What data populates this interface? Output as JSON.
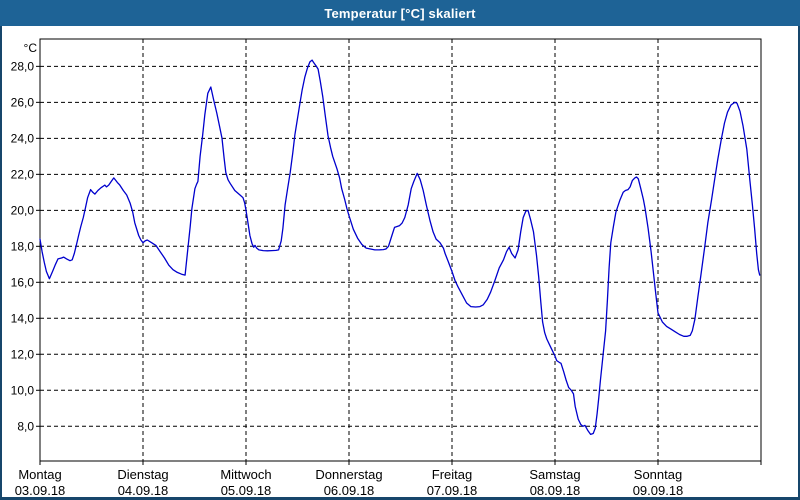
{
  "window": {
    "title": "Temperatur [°C] skaliert"
  },
  "colors": {
    "titlebar_bg": "#1e6396",
    "window_border": "#17466b",
    "line_color": "#0000cd",
    "grid_color": "#000000",
    "text_color": "#000000",
    "plot_bg": "#ffffff"
  },
  "chart_data": {
    "type": "line",
    "title": "Temperatur [°C] skaliert",
    "ylabel": "°C",
    "unit_label": "°C",
    "grid": "dashed",
    "legend": "none",
    "ylim": [
      6.07,
      29.52
    ],
    "xlim_hours": [
      0,
      168
    ],
    "y_ticks": [
      {
        "value": 28,
        "label": "28,0"
      },
      {
        "value": 26,
        "label": "26,0"
      },
      {
        "value": 24,
        "label": "24,0"
      },
      {
        "value": 22,
        "label": "22,0"
      },
      {
        "value": 20,
        "label": "20,0"
      },
      {
        "value": 18,
        "label": "18,0"
      },
      {
        "value": 16,
        "label": "16,0"
      },
      {
        "value": 14,
        "label": "14,0"
      },
      {
        "value": 12,
        "label": "12,0"
      },
      {
        "value": 10,
        "label": "10,0"
      },
      {
        "value": 8,
        "label": "8,0"
      }
    ],
    "x_days": [
      {
        "name": "Montag",
        "date": "03.09.18"
      },
      {
        "name": "Dienstag",
        "date": "04.09.18"
      },
      {
        "name": "Mittwoch",
        "date": "05.09.18"
      },
      {
        "name": "Donnerstag",
        "date": "06.09.18"
      },
      {
        "name": "Freitag",
        "date": "07.09.18"
      },
      {
        "name": "Samstag",
        "date": "08.09.18"
      },
      {
        "name": "Sonntag",
        "date": "09.09.18"
      }
    ],
    "series": [
      {
        "name": "Temperatur",
        "color": "#0000cd",
        "points": [
          [
            0,
            18.4
          ],
          [
            0.5,
            17.7
          ],
          [
            1,
            17.1
          ],
          [
            1.5,
            16.6
          ],
          [
            2.2,
            16.2
          ],
          [
            3,
            16.65
          ],
          [
            3.6,
            17.0
          ],
          [
            4.2,
            17.3
          ],
          [
            5,
            17.35
          ],
          [
            5.5,
            17.4
          ],
          [
            6.2,
            17.3
          ],
          [
            7,
            17.2
          ],
          [
            7.5,
            17.25
          ],
          [
            8,
            17.6
          ],
          [
            8.5,
            18.1
          ],
          [
            9,
            18.6
          ],
          [
            9.5,
            19.1
          ],
          [
            10.1,
            19.6
          ],
          [
            10.6,
            20.15
          ],
          [
            11.1,
            20.7
          ],
          [
            11.8,
            21.15
          ],
          [
            12.3,
            21.0
          ],
          [
            12.8,
            20.9
          ],
          [
            13.5,
            21.1
          ],
          [
            14.2,
            21.25
          ],
          [
            15.1,
            21.4
          ],
          [
            15.5,
            21.3
          ],
          [
            16,
            21.4
          ],
          [
            16.6,
            21.6
          ],
          [
            17.2,
            21.8
          ],
          [
            18,
            21.55
          ],
          [
            18.6,
            21.4
          ],
          [
            19.4,
            21.1
          ],
          [
            20.2,
            20.85
          ],
          [
            21,
            20.4
          ],
          [
            21.6,
            19.9
          ],
          [
            22.1,
            19.3
          ],
          [
            23,
            18.6
          ],
          [
            23.5,
            18.35
          ],
          [
            24,
            18.2
          ],
          [
            24.5,
            18.3
          ],
          [
            25,
            18.35
          ],
          [
            26,
            18.2
          ],
          [
            27,
            18.05
          ],
          [
            28,
            17.7
          ],
          [
            29,
            17.35
          ],
          [
            30,
            16.95
          ],
          [
            31,
            16.7
          ],
          [
            32,
            16.55
          ],
          [
            33,
            16.45
          ],
          [
            33.8,
            16.4
          ],
          [
            34.5,
            18.0
          ],
          [
            35,
            19.1
          ],
          [
            35.4,
            20.1
          ],
          [
            36.1,
            21.2
          ],
          [
            36.5,
            21.45
          ],
          [
            36.8,
            21.6
          ],
          [
            37.3,
            23.0
          ],
          [
            37.9,
            24.2
          ],
          [
            38.4,
            25.3
          ],
          [
            39.1,
            26.5
          ],
          [
            39.8,
            26.85
          ],
          [
            40.5,
            26.1
          ],
          [
            41.2,
            25.4
          ],
          [
            41.9,
            24.6
          ],
          [
            42.4,
            24.0
          ],
          [
            42.9,
            22.9
          ],
          [
            43.3,
            22.1
          ],
          [
            43.8,
            21.7
          ],
          [
            44.3,
            21.5
          ],
          [
            45.4,
            21.1
          ],
          [
            46.6,
            20.85
          ],
          [
            47.3,
            20.7
          ],
          [
            47.7,
            20.4
          ],
          [
            48,
            20.0
          ],
          [
            48.4,
            19.4
          ],
          [
            48.9,
            18.6
          ],
          [
            49.4,
            18.15
          ],
          [
            49.8,
            17.95
          ],
          [
            50.1,
            18.05
          ],
          [
            50.5,
            17.9
          ],
          [
            51,
            17.8
          ],
          [
            52,
            17.76
          ],
          [
            53,
            17.75
          ],
          [
            54,
            17.76
          ],
          [
            55,
            17.77
          ],
          [
            55.6,
            17.8
          ],
          [
            56.2,
            18.3
          ],
          [
            56.6,
            19.0
          ],
          [
            57.1,
            20.3
          ],
          [
            57.7,
            21.2
          ],
          [
            58.3,
            22.1
          ],
          [
            58.9,
            23.2
          ],
          [
            59.4,
            24.2
          ],
          [
            60,
            25.1
          ],
          [
            60.6,
            26.0
          ],
          [
            61.1,
            26.7
          ],
          [
            61.7,
            27.4
          ],
          [
            62.3,
            27.9
          ],
          [
            62.9,
            28.25
          ],
          [
            63.4,
            28.35
          ],
          [
            63.8,
            28.2
          ],
          [
            64.4,
            28.0
          ],
          [
            64.8,
            27.85
          ],
          [
            65.3,
            27.2
          ],
          [
            65.9,
            26.3
          ],
          [
            66.5,
            25.2
          ],
          [
            67.1,
            24.15
          ],
          [
            67.7,
            23.5
          ],
          [
            68.2,
            23.0
          ],
          [
            69.2,
            22.3
          ],
          [
            69.8,
            21.8
          ],
          [
            70.3,
            21.2
          ],
          [
            71,
            20.6
          ],
          [
            71.5,
            20.1
          ],
          [
            72,
            19.7
          ],
          [
            73,
            18.95
          ],
          [
            74,
            18.45
          ],
          [
            75,
            18.1
          ],
          [
            76,
            17.9
          ],
          [
            77,
            17.85
          ],
          [
            78,
            17.8
          ],
          [
            79,
            17.8
          ],
          [
            80,
            17.82
          ],
          [
            80.6,
            17.85
          ],
          [
            81.2,
            18.0
          ],
          [
            82,
            18.6
          ],
          [
            82.6,
            19.05
          ],
          [
            83.2,
            19.1
          ],
          [
            83.8,
            19.15
          ],
          [
            84.4,
            19.3
          ],
          [
            85,
            19.6
          ],
          [
            85.8,
            20.3
          ],
          [
            86.5,
            21.2
          ],
          [
            87.1,
            21.6
          ],
          [
            87.9,
            22.05
          ],
          [
            88.6,
            21.7
          ],
          [
            89.3,
            21.1
          ],
          [
            90,
            20.3
          ],
          [
            90.9,
            19.4
          ],
          [
            91.6,
            18.8
          ],
          [
            92.3,
            18.4
          ],
          [
            93.2,
            18.2
          ],
          [
            94,
            17.9
          ],
          [
            94.4,
            17.6
          ],
          [
            95.2,
            17.1
          ],
          [
            96,
            16.6
          ],
          [
            96.7,
            16.1
          ],
          [
            97.4,
            15.75
          ],
          [
            98.4,
            15.3
          ],
          [
            99.4,
            14.85
          ],
          [
            100.4,
            14.65
          ],
          [
            101.5,
            14.63
          ],
          [
            102.5,
            14.65
          ],
          [
            103.3,
            14.75
          ],
          [
            104.2,
            15.05
          ],
          [
            105,
            15.45
          ],
          [
            106,
            16.1
          ],
          [
            107,
            16.8
          ],
          [
            108,
            17.25
          ],
          [
            108.7,
            17.7
          ],
          [
            109.3,
            17.95
          ],
          [
            109.9,
            17.6
          ],
          [
            110.7,
            17.35
          ],
          [
            111.4,
            17.8
          ],
          [
            112,
            18.8
          ],
          [
            112.6,
            19.6
          ],
          [
            113.2,
            19.95
          ],
          [
            113.7,
            20.0
          ],
          [
            114.3,
            19.5
          ],
          [
            115,
            18.8
          ],
          [
            115.7,
            17.5
          ],
          [
            116.2,
            16.3
          ],
          [
            116.7,
            14.9
          ],
          [
            117.1,
            13.8
          ],
          [
            117.6,
            13.2
          ],
          [
            118.1,
            12.85
          ],
          [
            118.8,
            12.5
          ],
          [
            119.4,
            12.2
          ],
          [
            120,
            11.9
          ],
          [
            120.4,
            11.65
          ],
          [
            121,
            11.55
          ],
          [
            121.4,
            11.5
          ],
          [
            122,
            11.05
          ],
          [
            122.6,
            10.55
          ],
          [
            123.2,
            10.15
          ],
          [
            123.8,
            10.0
          ],
          [
            124.3,
            9.8
          ],
          [
            124.7,
            9.1
          ],
          [
            125.4,
            8.4
          ],
          [
            126,
            8.1
          ],
          [
            126.5,
            8.0
          ],
          [
            127,
            8.05
          ],
          [
            127.7,
            7.75
          ],
          [
            128.3,
            7.55
          ],
          [
            128.9,
            7.6
          ],
          [
            129.4,
            7.9
          ],
          [
            129.8,
            8.7
          ],
          [
            130.2,
            9.6
          ],
          [
            130.6,
            10.6
          ],
          [
            131,
            11.5
          ],
          [
            131.4,
            12.4
          ],
          [
            131.8,
            13.3
          ],
          [
            132.2,
            15.0
          ],
          [
            132.6,
            16.8
          ],
          [
            133,
            18.2
          ],
          [
            133.6,
            19.1
          ],
          [
            134.2,
            19.9
          ],
          [
            135.1,
            20.55
          ],
          [
            135.9,
            21.0
          ],
          [
            136.4,
            21.1
          ],
          [
            137,
            21.15
          ],
          [
            137.5,
            21.3
          ],
          [
            138,
            21.65
          ],
          [
            138.6,
            21.8
          ],
          [
            139,
            21.85
          ],
          [
            139.4,
            21.75
          ],
          [
            140,
            21.2
          ],
          [
            140.6,
            20.6
          ],
          [
            141,
            20.1
          ],
          [
            141.7,
            19.0
          ],
          [
            142.4,
            17.7
          ],
          [
            143,
            16.4
          ],
          [
            143.5,
            15.3
          ],
          [
            144,
            14.3
          ],
          [
            145,
            13.8
          ],
          [
            146,
            13.55
          ],
          [
            147,
            13.4
          ],
          [
            148,
            13.25
          ],
          [
            149,
            13.1
          ],
          [
            150,
            13.0
          ],
          [
            150.8,
            13.0
          ],
          [
            151.5,
            13.05
          ],
          [
            152,
            13.3
          ],
          [
            152.6,
            13.95
          ],
          [
            153.3,
            15.2
          ],
          [
            154,
            16.4
          ],
          [
            154.9,
            18.0
          ],
          [
            155.6,
            19.3
          ],
          [
            156.5,
            20.6
          ],
          [
            157.2,
            21.7
          ],
          [
            157.9,
            22.8
          ],
          [
            158.8,
            24.0
          ],
          [
            159.5,
            24.85
          ],
          [
            160.2,
            25.45
          ],
          [
            161,
            25.85
          ],
          [
            161.9,
            26.0
          ],
          [
            162.4,
            25.95
          ],
          [
            163.1,
            25.5
          ],
          [
            163.8,
            24.7
          ],
          [
            164.7,
            23.4
          ],
          [
            165.4,
            21.7
          ],
          [
            166,
            20.3
          ],
          [
            166.5,
            19.0
          ],
          [
            167,
            17.6
          ],
          [
            167.4,
            16.7
          ],
          [
            167.7,
            16.4
          ]
        ]
      }
    ]
  }
}
